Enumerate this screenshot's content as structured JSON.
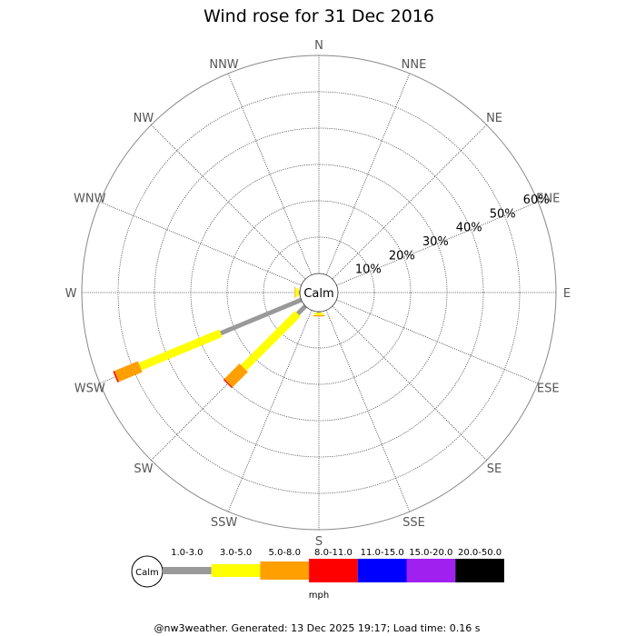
{
  "chart_data": {
    "type": "wind-rose",
    "title": "Wind rose for 31 Dec 2016",
    "directions": [
      "N",
      "NNE",
      "NE",
      "ENE",
      "E",
      "ESE",
      "SE",
      "SSE",
      "S",
      "SSW",
      "SW",
      "WSW",
      "W",
      "WNW",
      "NW",
      "NNW"
    ],
    "radial_ticks": [
      "10%",
      "20%",
      "30%",
      "40%",
      "50%",
      "60%"
    ],
    "radial_max_percent": 60,
    "calm_label": "Calm",
    "speed_bins": [
      {
        "label": "1.0-3.0",
        "color": "#999999"
      },
      {
        "label": "3.0-5.0",
        "color": "#ffff00"
      },
      {
        "label": "5.0-8.0",
        "color": "#ffa000"
      },
      {
        "label": "8.0-11.0",
        "color": "#ff0000"
      },
      {
        "label": "11.0-15.0",
        "color": "#0000ff"
      },
      {
        "label": "15.0-20.0",
        "color": "#a020f0"
      },
      {
        "label": "20.0-50.0",
        "color": "#000000"
      }
    ],
    "series": [
      {
        "direction": "W",
        "cumulative_percent": [
          0.3,
          1.2,
          1.4,
          1.4,
          1.4,
          1.4,
          1.4
        ]
      },
      {
        "direction": "WSW",
        "cumulative_percent": [
          24,
          48,
          55,
          55.4,
          55.4,
          55.4,
          55.4
        ]
      },
      {
        "direction": "SW",
        "cumulative_percent": [
          3,
          24,
          30,
          30.3,
          30.3,
          30.3,
          30.3
        ]
      },
      {
        "direction": "S",
        "cumulative_percent": [
          0.3,
          1.0,
          1.3,
          1.3,
          1.3,
          1.3,
          1.3
        ]
      }
    ],
    "legend_unit": "mph"
  },
  "footer": "@nw3weather. Generated: 13 Dec 2025 19:17; Load time: 0.16 s"
}
